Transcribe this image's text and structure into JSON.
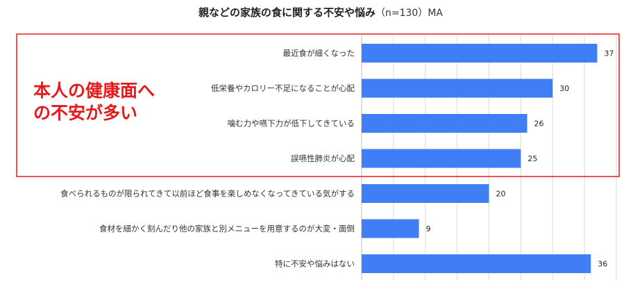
{
  "chart_data": {
    "type": "bar",
    "orientation": "horizontal",
    "title": "親などの家族の食に関する不安や悩み",
    "subtitle": "（n=130）MA",
    "categories": [
      "最近食が細くなった",
      "低栄養やカロリー不足になることが心配",
      "噛む力や嚥下力が低下してきている",
      "誤嚥性肺炎が心配",
      "食べられるものが限られてきて以前ほど食事を楽しめなくなってきている気がする",
      "食材を細かく刻んだり他の家族と別メニューを用意するのが大変・面倒",
      "特に不安や悩みはない"
    ],
    "values": [
      37,
      30,
      26,
      25,
      20,
      9,
      36
    ],
    "xlim": [
      0,
      40
    ],
    "grid": true,
    "bar_color": "#3f7ef5",
    "data_labels": true
  },
  "callout": {
    "lines": [
      "本人の健康面へ",
      "の不安が多い"
    ],
    "color": "#e8191b",
    "highlighted_categories": [
      0,
      1,
      2,
      3
    ]
  }
}
